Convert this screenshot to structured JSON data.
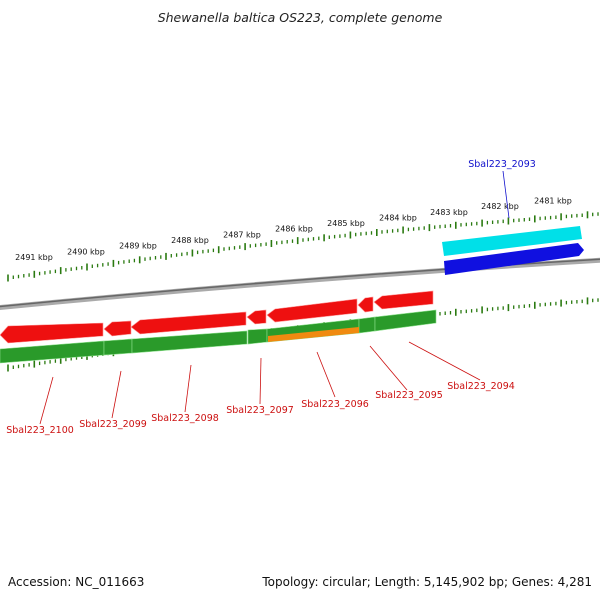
{
  "title": "Shewanella baltica OS223, complete genome",
  "footer": {
    "accession": "Accession: NC_011663",
    "genome_info": "Topology: circular; Length: 5,145,902 bp; Genes: 4,281"
  },
  "kbp_labels": [
    "2491 kbp",
    "2490 kbp",
    "2489 kbp",
    "2488 kbp",
    "2487 kbp",
    "2486 kbp",
    "2485 kbp",
    "2484 kbp",
    "2483 kbp",
    "2482 kbp",
    "2481 kbp"
  ],
  "genes": [
    "Sbal223_2093",
    "Sbal223_2094",
    "Sbal223_2095",
    "Sbal223_2096",
    "Sbal223_2097",
    "Sbal223_2098",
    "Sbal223_2099",
    "Sbal223_2100"
  ],
  "colors": {
    "forward_cds": "#00e0e8",
    "forward_gene": "#1010e0",
    "reverse_cds": "#ee1010",
    "reverse_gene": "#2a9a2a",
    "highlight_gene": "#f08a10",
    "backbone": "#888888",
    "tick": "#2a7a10",
    "forward_label": "#1010cc",
    "reverse_label": "#cc1010"
  }
}
